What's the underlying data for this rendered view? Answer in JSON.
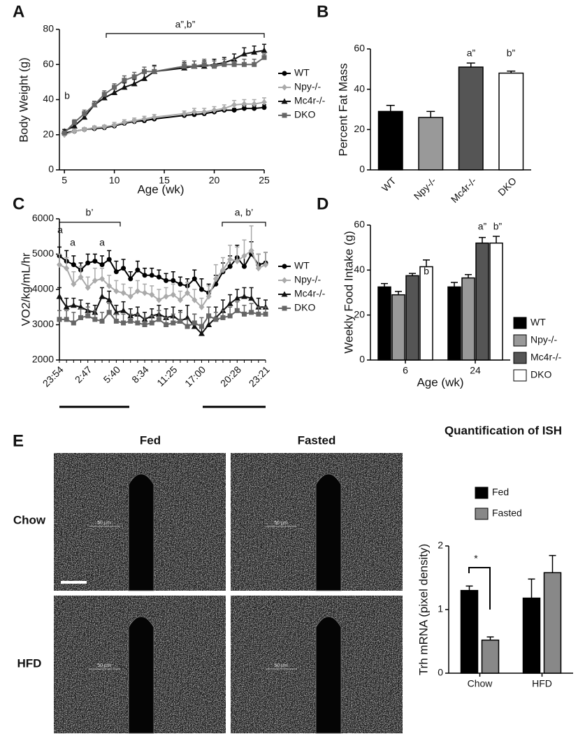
{
  "chart_data": [
    {
      "type": "line",
      "panel": "A",
      "ylabel": "Body Weight (g)",
      "xlabel": "Age (wk)",
      "x": [
        5,
        6,
        7,
        8,
        9,
        10,
        11,
        12,
        13,
        14,
        17,
        18,
        19,
        20,
        21,
        22,
        23,
        24,
        25
      ],
      "xlim": [
        4.5,
        25
      ],
      "xticks": [
        5,
        10,
        15,
        20,
        25
      ],
      "ylim": [
        0,
        80
      ],
      "yticks": [
        0,
        20,
        40,
        60,
        80
      ],
      "legend": "right",
      "annotations": [
        "a”,b”",
        "b"
      ],
      "series": [
        {
          "name": "WT",
          "color": "#000000",
          "marker": "circle",
          "values": [
            21,
            22,
            23,
            23.5,
            24,
            25,
            26.5,
            27.5,
            28,
            29,
            31,
            31.5,
            32,
            33,
            34,
            34,
            35,
            35,
            35.5
          ],
          "errors": [
            1,
            1,
            1,
            1,
            1,
            1,
            1,
            1,
            1,
            1,
            1,
            1,
            1,
            1,
            1,
            1,
            1.5,
            1.5,
            1.5
          ]
        },
        {
          "name": "Npy-/-",
          "color": "#aaaaaa",
          "marker": "diamond",
          "values": [
            20,
            22,
            23,
            24,
            24.5,
            25.5,
            27,
            28,
            29,
            30,
            32,
            33,
            33,
            34,
            35,
            37,
            37.5,
            37.5,
            38.5
          ],
          "errors": [
            1,
            1,
            1,
            1,
            1,
            1.5,
            1.5,
            1.5,
            1.5,
            1.5,
            1.5,
            2,
            2,
            2,
            2,
            2.5,
            2.5,
            2.5,
            2.5
          ]
        },
        {
          "name": "Mc4r-/-",
          "color": "#111111",
          "marker": "triangle",
          "values": [
            22,
            25,
            30,
            37,
            41,
            44,
            47,
            49,
            52,
            56,
            58,
            59,
            59,
            60,
            61,
            63,
            66,
            67,
            68
          ],
          "errors": [
            1,
            1.5,
            1.5,
            2,
            2,
            2,
            2.5,
            2.5,
            3,
            3.5,
            3,
            3,
            3,
            3,
            3,
            3,
            3.5,
            3.5,
            3.5
          ]
        },
        {
          "name": "DKO",
          "color": "#666666",
          "marker": "square",
          "values": [
            21,
            27,
            32,
            37,
            43,
            47,
            51,
            53,
            56,
            56,
            59,
            59,
            60,
            59,
            60,
            60,
            60,
            60,
            64
          ],
          "errors": [
            1,
            1.5,
            2,
            2,
            2,
            2,
            2.5,
            2.5,
            2.5,
            3,
            3,
            3,
            3,
            3,
            3,
            3,
            3,
            3,
            2
          ]
        }
      ]
    },
    {
      "type": "bar",
      "panel": "B",
      "ylabel": "Percent Fat Mass",
      "categories": [
        "WT",
        "Npy-/-",
        "Mc4r-/-",
        "DKO"
      ],
      "values": [
        29,
        26,
        51,
        48
      ],
      "errors": [
        3,
        3,
        2,
        1
      ],
      "colors": [
        "#000000",
        "#999999",
        "#555555",
        "#ffffff"
      ],
      "ylim": [
        0,
        60
      ],
      "yticks": [
        0,
        20,
        40,
        60
      ],
      "annotations": [
        "a”",
        "b”"
      ]
    },
    {
      "type": "line",
      "panel": "C",
      "ylabel": "VO2/kg/mL/hr",
      "categories": [
        "23:54",
        null,
        null,
        null,
        "2:47",
        null,
        null,
        null,
        "5:40",
        null,
        null,
        null,
        "8:34",
        null,
        null,
        null,
        "11:25",
        null,
        null,
        null,
        "17:00",
        null,
        null,
        null,
        null,
        "20:28",
        null,
        null,
        null,
        "23:21"
      ],
      "ylim": [
        2000,
        6000
      ],
      "yticks": [
        2000,
        3000,
        4000,
        5000,
        6000
      ],
      "legend": "right",
      "annotations": [
        "b’",
        "a, b’",
        "a",
        "a",
        "a"
      ],
      "series": [
        {
          "name": "WT",
          "color": "#000000",
          "marker": "circle",
          "values": [
            4950,
            4800,
            4700,
            4550,
            4750,
            4800,
            4700,
            4850,
            4500,
            4600,
            4300,
            4550,
            4400,
            4400,
            4350,
            4250,
            4250,
            4150,
            4100,
            4300,
            4000,
            3900,
            4150,
            4500,
            4650,
            4900,
            4650,
            5000,
            4700,
            4750
          ],
          "errors": [
            250,
            300,
            250,
            200,
            250,
            200,
            250,
            250,
            300,
            250,
            200,
            250,
            200,
            200,
            200,
            200,
            250,
            200,
            200,
            250,
            300,
            250,
            250,
            250,
            300,
            350,
            300,
            350,
            300,
            300
          ]
        },
        {
          "name": "Npy-/-",
          "color": "#aaaaaa",
          "marker": "diamond",
          "values": [
            4700,
            4600,
            4150,
            4350,
            4050,
            4250,
            4300,
            4100,
            3950,
            3900,
            3800,
            3950,
            3900,
            3850,
            3700,
            3800,
            3850,
            3700,
            3900,
            3700,
            3500,
            3800,
            4300,
            4550,
            4850,
            4800,
            4950,
            5100,
            4600,
            4700
          ],
          "errors": [
            300,
            300,
            350,
            300,
            300,
            350,
            300,
            300,
            300,
            250,
            250,
            300,
            250,
            250,
            300,
            250,
            300,
            250,
            300,
            300,
            250,
            300,
            400,
            350,
            400,
            400,
            450,
            700,
            400,
            350
          ]
        },
        {
          "name": "Mc4r-/-",
          "color": "#111111",
          "marker": "triangle",
          "values": [
            3800,
            3500,
            3550,
            3500,
            3400,
            3350,
            3800,
            3700,
            3350,
            3400,
            3250,
            3300,
            3150,
            3250,
            3300,
            3200,
            3250,
            3100,
            3200,
            2950,
            2750,
            3000,
            3200,
            3400,
            3600,
            3750,
            3800,
            3750,
            3500,
            3500
          ],
          "errors": [
            250,
            250,
            200,
            200,
            200,
            200,
            250,
            250,
            200,
            250,
            200,
            200,
            200,
            200,
            250,
            250,
            250,
            300,
            350,
            350,
            250,
            250,
            300,
            300,
            250,
            250,
            250,
            300,
            250,
            200
          ]
        },
        {
          "name": "DKO",
          "color": "#666666",
          "marker": "square",
          "values": [
            3150,
            3150,
            3050,
            3200,
            3250,
            3150,
            3100,
            3350,
            3100,
            3050,
            3100,
            3050,
            3000,
            3050,
            3150,
            3000,
            3050,
            3100,
            2950,
            3050,
            2950,
            3250,
            3150,
            3200,
            3250,
            3400,
            3300,
            3350,
            3300,
            3300
          ],
          "errors": [
            250,
            250,
            300,
            250,
            250,
            250,
            250,
            250,
            200,
            250,
            200,
            250,
            200,
            200,
            250,
            200,
            250,
            250,
            200,
            250,
            250,
            250,
            200,
            200,
            250,
            250,
            250,
            250,
            200,
            200
          ]
        }
      ]
    },
    {
      "type": "groupbar",
      "panel": "D",
      "ylabel": "Weekly Food Intake (g)",
      "xlabel": "Age (wk)",
      "categories": [
        "6",
        "24"
      ],
      "ylim": [
        0,
        60
      ],
      "yticks": [
        0,
        20,
        40,
        60
      ],
      "legend": "right",
      "annotations": [
        "b",
        "a”",
        "b”"
      ],
      "series": [
        {
          "name": "WT",
          "color": "#000000",
          "values": [
            32.5,
            32.5
          ],
          "errors": [
            1.5,
            2
          ]
        },
        {
          "name": "Npy-/-",
          "color": "#999999",
          "values": [
            29,
            36.5
          ],
          "errors": [
            1.5,
            1.5
          ]
        },
        {
          "name": "Mc4r-/-",
          "color": "#555555",
          "values": [
            37.5,
            52
          ],
          "errors": [
            1,
            2.5
          ]
        },
        {
          "name": "DKO",
          "color": "#ffffff",
          "values": [
            41.5,
            52
          ],
          "errors": [
            3,
            3
          ]
        }
      ]
    },
    {
      "type": "groupbar",
      "panel": "E",
      "title": "Quantification of ISH",
      "ylabel": "Trh mRNA (pixel density)",
      "categories": [
        "Chow",
        "HFD"
      ],
      "ylim": [
        0,
        2
      ],
      "yticks": [
        0,
        1,
        2
      ],
      "legend": "top",
      "annotations": [
        "*"
      ],
      "series": [
        {
          "name": "Fed",
          "color": "#000000",
          "values": [
            1.3,
            1.18
          ],
          "errors": [
            0.07,
            0.3
          ]
        },
        {
          "name": "Fasted",
          "color": "#888888",
          "values": [
            0.52,
            1.58
          ],
          "errors": [
            0.05,
            0.27
          ]
        }
      ]
    }
  ],
  "micrographs": {
    "columns": [
      "Fed",
      "Fasted"
    ],
    "rows": [
      "Chow",
      "HFD"
    ],
    "scale_bar": "50 µm"
  }
}
